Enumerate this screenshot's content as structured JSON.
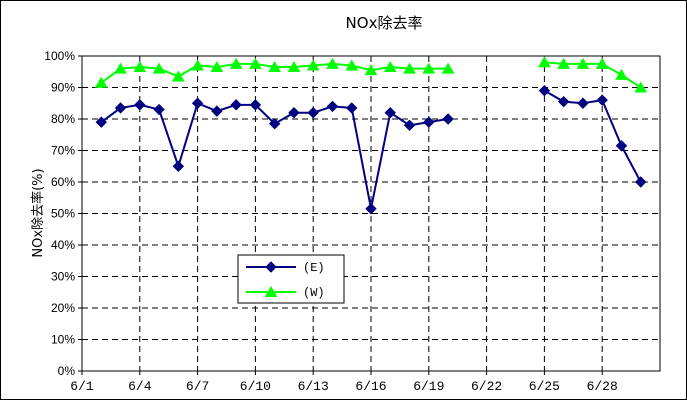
{
  "chart_data": {
    "type": "line",
    "title": "NOx除去率",
    "ylabel": "NOx除去率(%)",
    "xlabel": "",
    "ylim": [
      0,
      100
    ],
    "y_ticks": [
      "0%",
      "10%",
      "20%",
      "30%",
      "40%",
      "50%",
      "60%",
      "70%",
      "80%",
      "90%",
      "100%"
    ],
    "x_tick_labels": [
      "6/1",
      "6/4",
      "6/7",
      "6/10",
      "6/13",
      "6/16",
      "6/19",
      "6/22",
      "6/25",
      "6/28"
    ],
    "x_tick_days": [
      1,
      4,
      7,
      10,
      13,
      16,
      19,
      22,
      25,
      28
    ],
    "xlim": [
      1,
      31
    ],
    "grid": true,
    "legend_position": "lower-left",
    "series": [
      {
        "name": "(E)",
        "color": "#000080",
        "marker": "diamond",
        "points": [
          [
            2,
            79
          ],
          [
            3,
            83.5
          ],
          [
            4,
            84.5
          ],
          [
            5,
            83
          ],
          [
            6,
            65
          ],
          [
            7,
            85
          ],
          [
            8,
            82.5
          ],
          [
            9,
            84.5
          ],
          [
            10,
            84.5
          ],
          [
            11,
            78.5
          ],
          [
            12,
            82
          ],
          [
            13,
            82
          ],
          [
            14,
            84
          ],
          [
            15,
            83.5
          ],
          [
            16,
            51.5
          ],
          [
            17,
            82
          ],
          [
            18,
            78
          ],
          [
            19,
            79
          ],
          [
            20,
            80
          ],
          null,
          [
            25,
            89
          ],
          [
            26,
            85.5
          ],
          [
            27,
            85
          ],
          [
            28,
            86
          ],
          [
            29,
            71.5
          ],
          [
            30,
            60
          ]
        ]
      },
      {
        "name": "(W)",
        "color": "#00ff00",
        "marker": "triangle",
        "points": [
          [
            2,
            91.5
          ],
          [
            3,
            96
          ],
          [
            4,
            96.5
          ],
          [
            5,
            96
          ],
          [
            6,
            93.5
          ],
          [
            7,
            97
          ],
          [
            8,
            96.5
          ],
          [
            9,
            97.5
          ],
          [
            10,
            97.5
          ],
          [
            11,
            96.5
          ],
          [
            12,
            96.5
          ],
          [
            13,
            97
          ],
          [
            14,
            97.5
          ],
          [
            15,
            97
          ],
          [
            16,
            95.5
          ],
          [
            17,
            96.5
          ],
          [
            18,
            96
          ],
          [
            19,
            96
          ],
          [
            20,
            96
          ],
          null,
          [
            25,
            98
          ],
          [
            26,
            97.5
          ],
          [
            27,
            97.5
          ],
          [
            28,
            97.5
          ],
          [
            29,
            94
          ],
          [
            30,
            90
          ]
        ]
      }
    ]
  }
}
